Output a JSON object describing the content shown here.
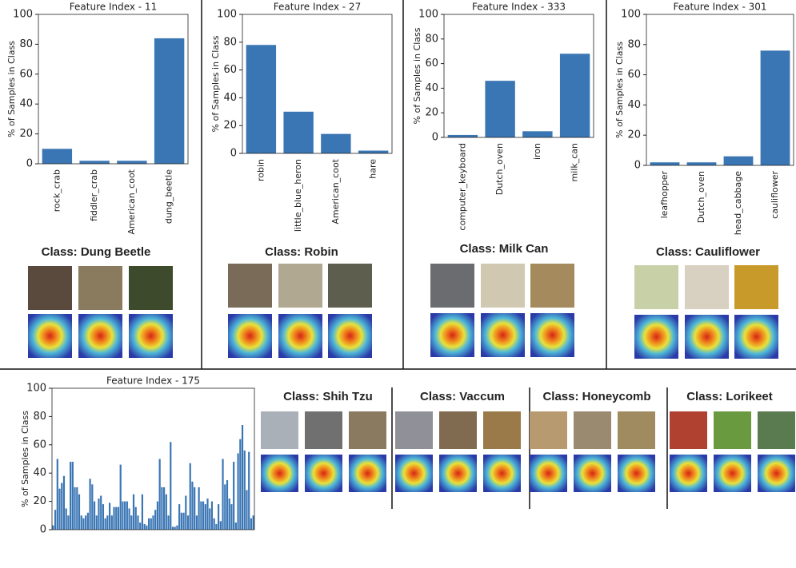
{
  "chart_data": [
    {
      "type": "bar",
      "title": "Feature Index - 11",
      "ylabel": "% of Samples in Class",
      "categories": [
        "rock_crab",
        "fiddler_crab",
        "American_coot",
        "dung_beetle"
      ],
      "values": [
        10,
        2,
        2,
        84
      ],
      "color": "#3a75b4",
      "ylim": [
        0,
        100
      ],
      "yticks": [
        0,
        20,
        40,
        60,
        80,
        100
      ]
    },
    {
      "type": "bar",
      "title": "Feature Index - 27",
      "ylabel": "% of Samples in Class",
      "categories": [
        "robin",
        "little_blue_heron",
        "American_coot",
        "hare"
      ],
      "values": [
        78,
        30,
        14,
        2
      ],
      "color": "#3a75b4",
      "ylim": [
        0,
        100
      ],
      "yticks": [
        0,
        20,
        40,
        60,
        80,
        100
      ]
    },
    {
      "type": "bar",
      "title": "Feature Index - 333",
      "ylabel": "% of Samples in Class",
      "categories": [
        "computer_keyboard",
        "Dutch_oven",
        "iron",
        "milk_can"
      ],
      "values": [
        2,
        46,
        5,
        68
      ],
      "color": "#3a75b4",
      "ylim": [
        0,
        100
      ],
      "yticks": [
        0,
        20,
        40,
        60,
        80,
        100
      ]
    },
    {
      "type": "bar",
      "title": "Feature Index - 301",
      "ylabel": "% of Samples in Class",
      "categories": [
        "leafhopper",
        "Dutch_oven",
        "head_cabbage",
        "cauliflower"
      ],
      "values": [
        2,
        2,
        6,
        76
      ],
      "color": "#3a75b4",
      "ylim": [
        0,
        100
      ],
      "yticks": [
        0,
        20,
        40,
        60,
        80,
        100
      ]
    },
    {
      "type": "bar",
      "title": "Feature Index - 175",
      "ylabel": "% of Samples in Class",
      "categories": [
        null,
        null,
        null,
        null,
        null,
        null,
        null,
        null,
        null,
        null,
        null,
        null,
        null,
        null,
        null,
        null,
        null,
        null,
        null,
        null,
        null,
        null,
        null,
        null,
        null,
        null,
        null,
        null,
        null,
        null,
        null,
        null,
        null,
        null,
        null,
        null,
        null,
        null,
        null,
        null,
        null,
        null,
        null,
        null,
        null,
        null,
        null,
        null,
        null,
        null,
        null,
        null,
        null,
        null,
        null,
        null,
        null,
        null,
        null,
        null,
        null,
        null,
        null,
        null,
        null,
        null,
        null,
        null,
        null,
        null,
        null,
        null,
        null,
        null,
        null,
        null,
        null,
        null,
        null,
        null,
        null,
        null,
        null,
        null,
        null,
        null,
        null,
        null,
        null,
        null,
        null,
        null,
        null
      ],
      "values": [
        3,
        14,
        50,
        29,
        33,
        38,
        15,
        10,
        48,
        48,
        30,
        30,
        25,
        10,
        8,
        10,
        12,
        36,
        32,
        20,
        10,
        22,
        24,
        18,
        8,
        10,
        19,
        10,
        16,
        16,
        16,
        46,
        20,
        20,
        20,
        15,
        10,
        25,
        16,
        10,
        5,
        25,
        4,
        3,
        8,
        8,
        10,
        14,
        20,
        50,
        30,
        30,
        25,
        10,
        62,
        2,
        2,
        3,
        18,
        12,
        12,
        24,
        10,
        47,
        34,
        30,
        10,
        30,
        20,
        20,
        18,
        22,
        15,
        20,
        8,
        4,
        18,
        6,
        50,
        32,
        35,
        22,
        18,
        48,
        5,
        54,
        64,
        74,
        56,
        28,
        55,
        8,
        10
      ],
      "color": "#3a75b4",
      "ylim": [
        0,
        100
      ],
      "yticks": [
        0,
        20,
        40,
        60,
        80,
        100
      ]
    }
  ],
  "panels": [
    {
      "title": "Class: Dung Beetle"
    },
    {
      "title": "Class: Robin"
    },
    {
      "title": "Class: Milk Can"
    },
    {
      "title": "Class: Cauliflower"
    },
    {
      "title": "Class: Shih Tzu"
    },
    {
      "title": "Class: Vaccum"
    },
    {
      "title": "Class: Honeycomb"
    },
    {
      "title": "Class: Lorikeet"
    }
  ]
}
